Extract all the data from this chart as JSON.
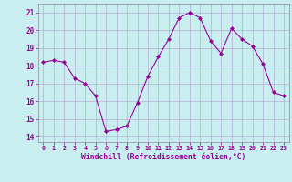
{
  "x": [
    0,
    1,
    2,
    3,
    4,
    5,
    6,
    7,
    8,
    9,
    10,
    11,
    12,
    13,
    14,
    15,
    16,
    17,
    18,
    19,
    20,
    21,
    22,
    23
  ],
  "y": [
    18.2,
    18.3,
    18.2,
    17.3,
    17.0,
    16.3,
    14.3,
    14.4,
    14.6,
    15.9,
    17.4,
    18.5,
    19.5,
    20.7,
    21.0,
    20.7,
    19.4,
    18.7,
    20.1,
    19.5,
    19.1,
    18.1,
    16.5,
    16.3
  ],
  "line_color": "#990099",
  "marker": "D",
  "marker_size": 2.0,
  "bg_color": "#c8eef0",
  "grid_color": "#b0a0cc",
  "xlabel": "Windchill (Refroidissement éolien,°C)",
  "xlabel_color": "#990099",
  "ylabel_ticks": [
    14,
    15,
    16,
    17,
    18,
    19,
    20,
    21
  ],
  "xtick_labels": [
    "0",
    "1",
    "2",
    "3",
    "4",
    "5",
    "6",
    "7",
    "8",
    "9",
    "10",
    "11",
    "12",
    "13",
    "14",
    "15",
    "16",
    "17",
    "18",
    "19",
    "20",
    "21",
    "22",
    "23"
  ],
  "xlim": [
    -0.5,
    23.5
  ],
  "ylim": [
    13.7,
    21.5
  ],
  "tick_color": "#990099",
  "ytick_fontsize": 5.5,
  "xtick_fontsize": 4.8,
  "xlabel_fontsize": 5.8
}
